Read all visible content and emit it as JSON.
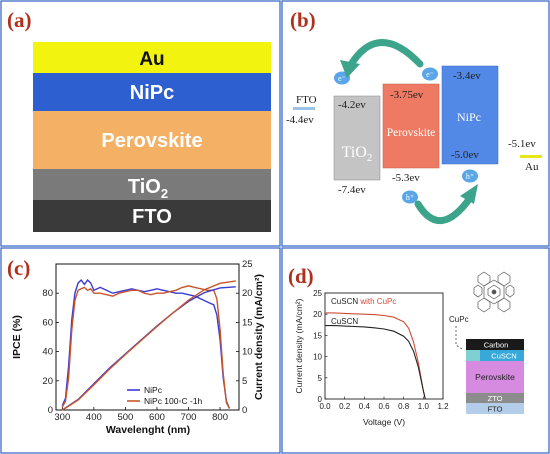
{
  "panels": {
    "a": "(a)",
    "b": "(b)",
    "c": "(c)",
    "d": "(d)"
  },
  "stack_a": [
    {
      "label": "Au",
      "color": "#f3f310",
      "text_color": "#111111"
    },
    {
      "label": "NiPc",
      "color": "#2e5fd0",
      "text_color": "#ffffff"
    },
    {
      "label": "Perovskite",
      "color": "#f4b165",
      "text_color": "#ffffff"
    },
    {
      "label": "TiO",
      "sub": "2",
      "color": "#7a7a7a",
      "text_color": "#ffffff"
    },
    {
      "label": "FTO",
      "color": "#3a3a3a",
      "text_color": "#ffffff"
    }
  ],
  "energy": {
    "fto": {
      "name": "FTO",
      "level": "-4.4ev"
    },
    "tio2": {
      "name": "TiO",
      "sub": "2",
      "top": "-4.2ev",
      "bottom": "-7.4ev"
    },
    "perovskite": {
      "name": "Perovskite",
      "top": "-3.75ev",
      "bottom": "-5.3ev"
    },
    "nipc": {
      "name": "NiPc",
      "top": "-3.4ev",
      "bottom": "-5.0ev"
    },
    "au": {
      "name": "Au",
      "level": "-5.1ev"
    },
    "electron1": "e⁻",
    "electron2": "e⁻",
    "hole1": "h⁺",
    "hole2": "h⁺"
  },
  "chart_data": [
    {
      "type": "line",
      "xlabel": "Wavelenght (nm)",
      "ylabel": "IPCE (%)",
      "y2label": "Current density (mA/cm²)",
      "xlim": [
        280,
        860
      ],
      "ylim": [
        0,
        100
      ],
      "y2lim": [
        0,
        25
      ],
      "xticks": [
        "300",
        "400",
        "500",
        "600",
        "700",
        "800"
      ],
      "yticks": [
        "0",
        "20",
        "40",
        "60",
        "80"
      ],
      "y2ticks": [
        "0",
        "5",
        "10",
        "15",
        "20",
        "25"
      ],
      "legend_position": "bottom-right",
      "series": [
        {
          "name": "NiPc",
          "color": "#3a3ad6",
          "axis": "y",
          "x": [
            300,
            310,
            320,
            330,
            340,
            350,
            360,
            370,
            380,
            390,
            400,
            420,
            440,
            460,
            480,
            500,
            520,
            540,
            560,
            580,
            600,
            620,
            640,
            660,
            680,
            700,
            720,
            740,
            760,
            780,
            790,
            800,
            810,
            820,
            830
          ],
          "y": [
            3,
            8,
            30,
            62,
            80,
            87,
            89,
            86,
            89,
            87,
            82,
            84,
            82,
            80,
            81,
            82,
            83,
            82,
            81,
            82,
            83,
            82,
            81,
            80,
            80,
            79,
            78,
            76,
            74,
            72,
            65,
            48,
            22,
            6,
            1
          ]
        },
        {
          "name": "NiPc 100◦C -1h",
          "color": "#c8562a",
          "axis": "y",
          "x": [
            300,
            310,
            320,
            330,
            340,
            350,
            360,
            370,
            380,
            390,
            400,
            420,
            440,
            460,
            480,
            500,
            520,
            540,
            560,
            580,
            600,
            620,
            640,
            660,
            680,
            700,
            720,
            740,
            760,
            780,
            790,
            800,
            810,
            820,
            830
          ],
          "y": [
            2,
            6,
            22,
            55,
            75,
            82,
            83,
            84,
            82,
            83,
            80,
            80,
            79,
            78,
            80,
            81,
            82,
            82,
            80,
            79,
            80,
            80,
            81,
            82,
            84,
            85,
            84,
            83,
            82,
            82,
            76,
            55,
            25,
            5,
            1
          ]
        },
        {
          "name": "NiPc",
          "color": "#3a3ad6",
          "axis": "y2",
          "x": [
            300,
            350,
            400,
            450,
            500,
            550,
            600,
            650,
            700,
            750,
            800,
            850
          ],
          "y": [
            0,
            1.8,
            4.5,
            7.2,
            9.6,
            12.0,
            14.4,
            16.6,
            18.6,
            20.1,
            20.9,
            21.1
          ]
        },
        {
          "name": "NiPc 100◦C -1h",
          "color": "#c8562a",
          "axis": "y2",
          "x": [
            300,
            350,
            400,
            450,
            500,
            550,
            600,
            650,
            700,
            750,
            800,
            850
          ],
          "y": [
            0,
            1.7,
            4.3,
            7.0,
            9.5,
            11.9,
            14.3,
            16.6,
            18.8,
            20.6,
            21.7,
            22.1
          ]
        }
      ]
    },
    {
      "type": "line",
      "xlabel": "Voltage (V)",
      "ylabel": "Current density (mA/cm²)",
      "xlim": [
        0.0,
        1.2
      ],
      "ylim": [
        0,
        25
      ],
      "xticks": [
        "0.0",
        "0.2",
        "0.4",
        "0.6",
        "0.8",
        "1.0",
        "1.2"
      ],
      "yticks": [
        "0",
        "5",
        "10",
        "15",
        "20",
        "25"
      ],
      "series": [
        {
          "name": "CuSCN with CuPc",
          "color": "#d04a3a",
          "x": [
            0.0,
            0.1,
            0.2,
            0.3,
            0.4,
            0.5,
            0.6,
            0.7,
            0.8,
            0.85,
            0.9,
            0.95,
            1.0,
            1.02
          ],
          "y": [
            20.3,
            20.3,
            20.2,
            20.1,
            20.0,
            19.9,
            19.7,
            19.3,
            18.2,
            16.7,
            13.5,
            8.5,
            2.0,
            0
          ]
        },
        {
          "name": "CuSCN",
          "color": "#222222",
          "x": [
            0.0,
            0.1,
            0.2,
            0.3,
            0.4,
            0.5,
            0.6,
            0.7,
            0.8,
            0.85,
            0.9,
            0.95,
            1.0,
            1.02
          ],
          "y": [
            17.3,
            17.3,
            17.2,
            17.1,
            17.0,
            16.8,
            16.5,
            16.0,
            14.8,
            13.6,
            11.3,
            7.5,
            2.0,
            0
          ]
        }
      ]
    }
  ],
  "device_d": {
    "cupc_label": "CuPc",
    "layers": [
      {
        "label": "Carbon",
        "color": "#1a1a1a",
        "text_color": "#ffffff"
      },
      {
        "label": "CuSCN",
        "color": "#38a8d8",
        "text_color": "#ffffff"
      },
      {
        "label": "Perovskite",
        "color": "#d68ae0",
        "text_color": "#222222"
      },
      {
        "label": "ZTO",
        "color": "#8c8c8c",
        "text_color": "#ffffff"
      },
      {
        "label": "FTO",
        "color": "#b4cde8",
        "text_color": "#222222"
      }
    ]
  }
}
